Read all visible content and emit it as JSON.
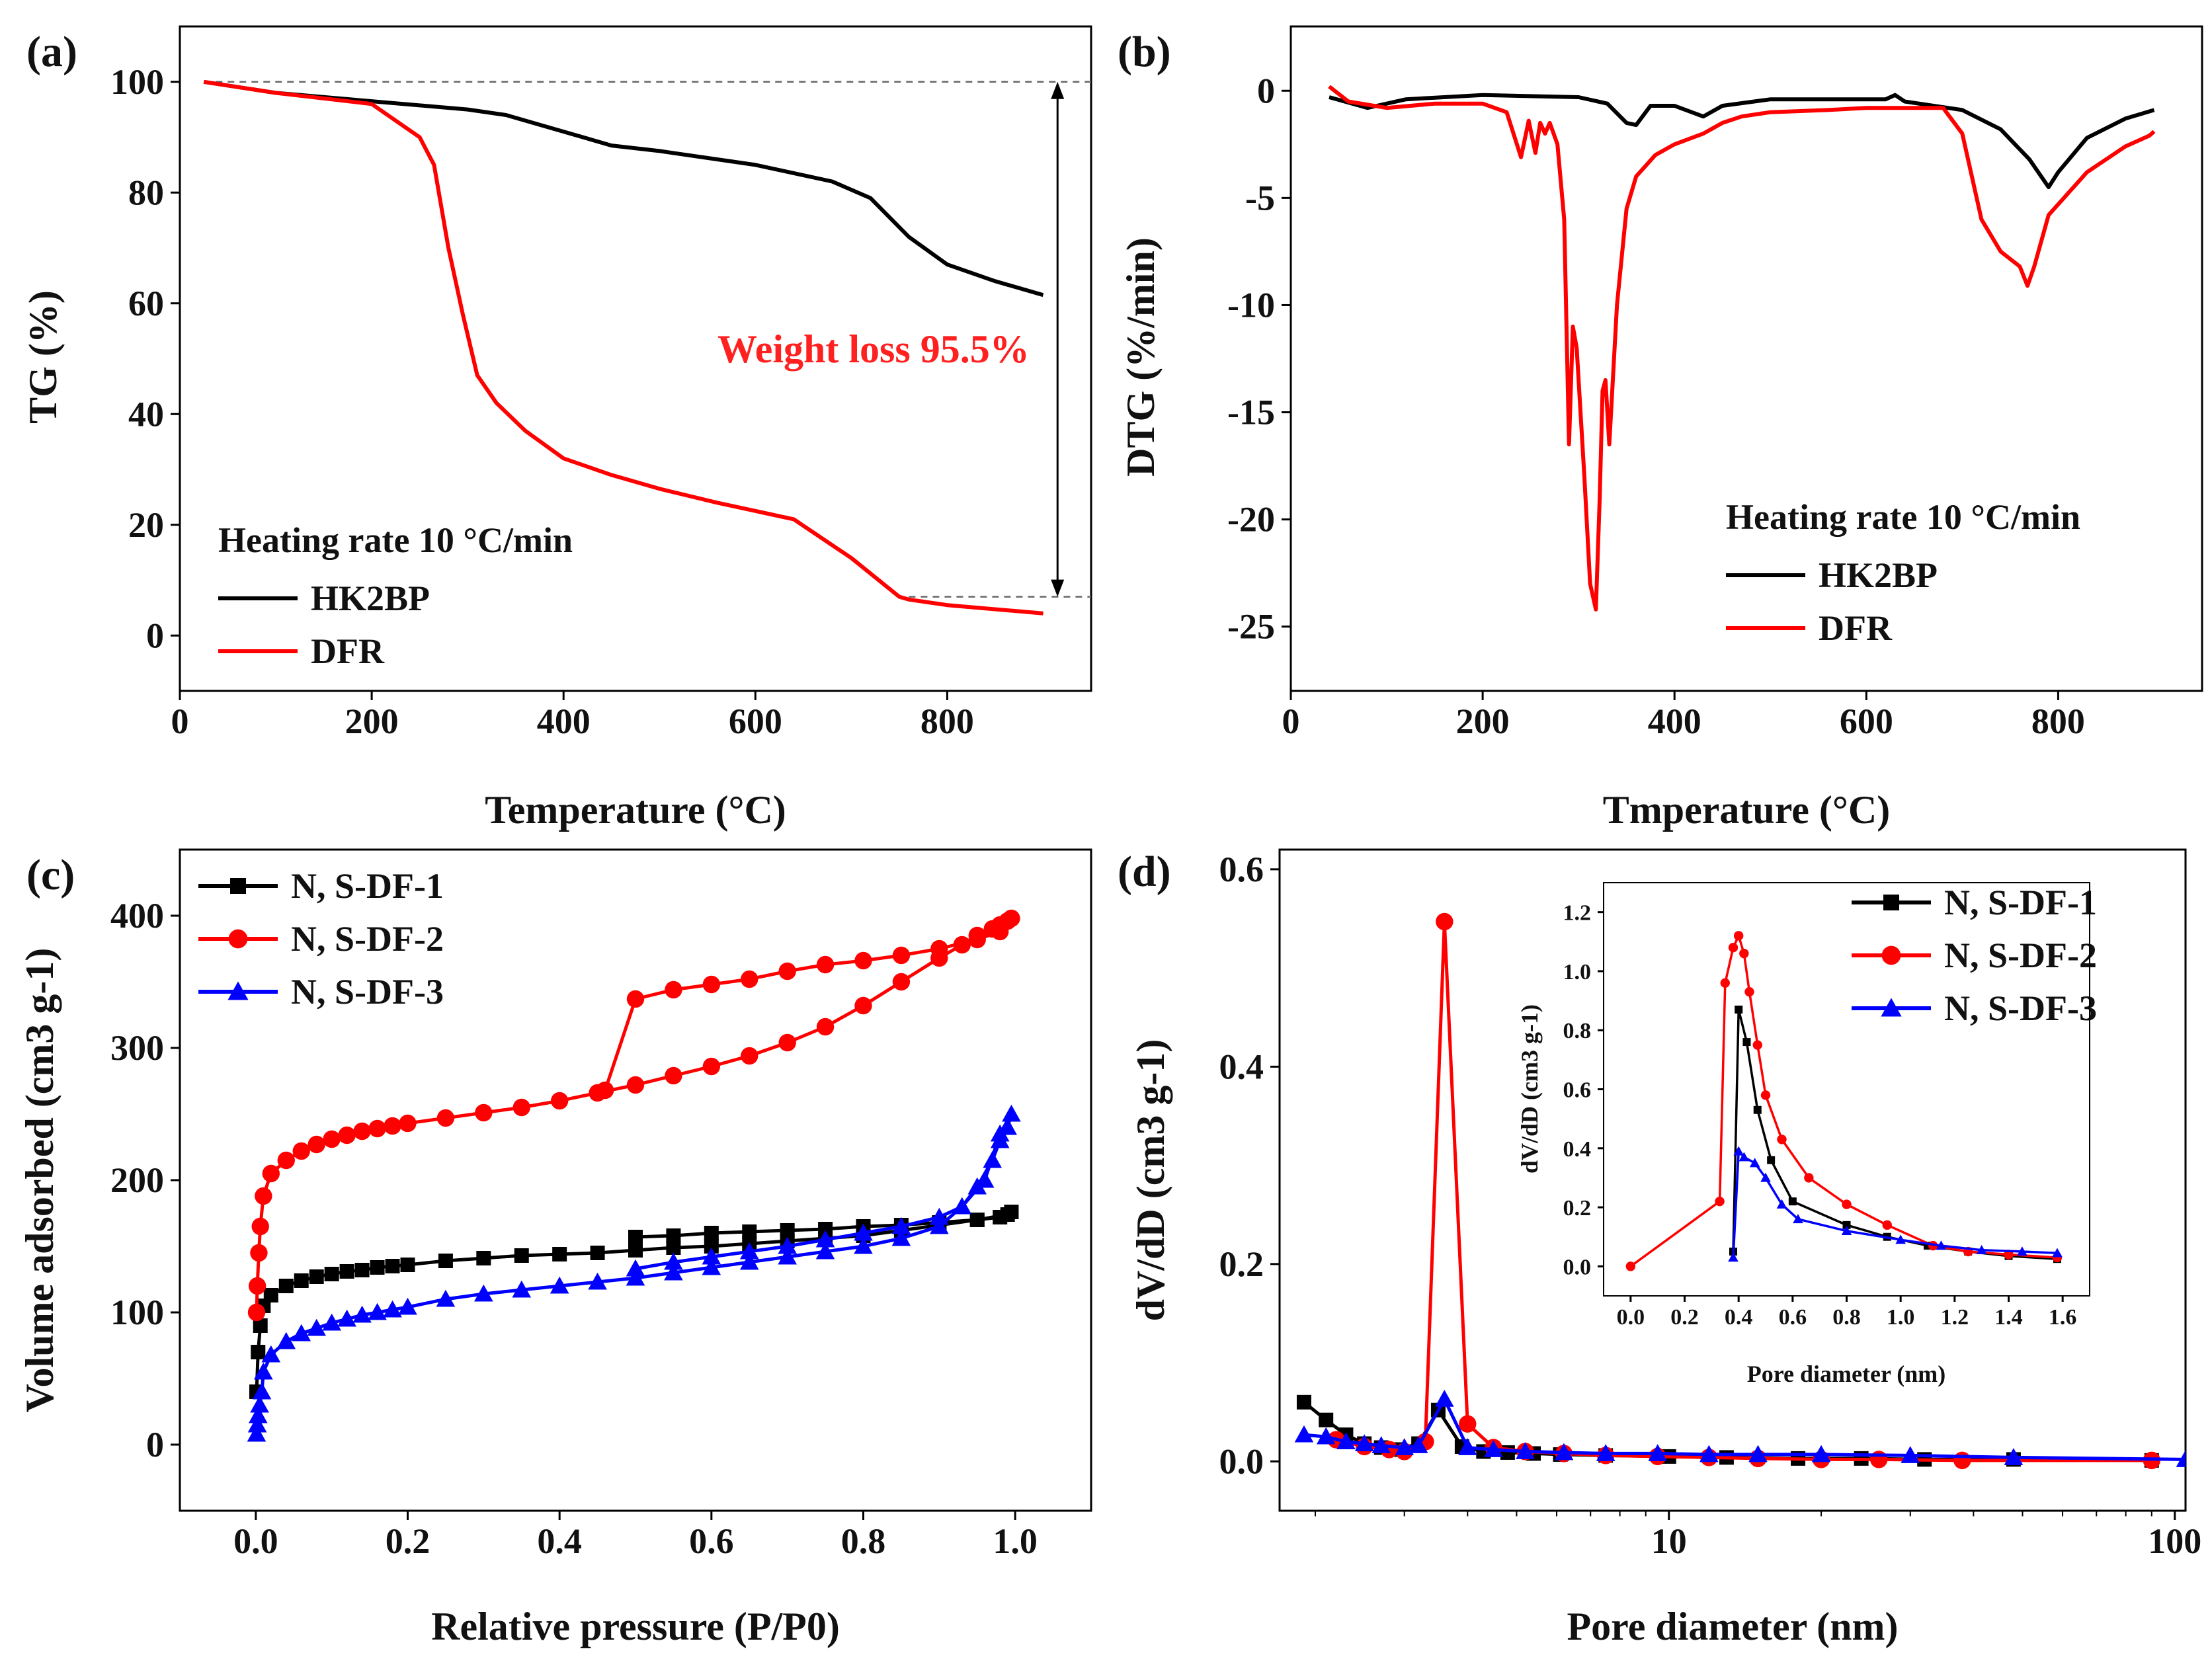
{
  "chart_data": [
    {
      "panel": "(a)",
      "type": "line",
      "xlabel": "Temperature (°C)",
      "ylabel": "TG (%)",
      "xlim": [
        0,
        950
      ],
      "ylim": [
        -10,
        110
      ],
      "xticks": [
        0,
        200,
        400,
        600,
        800
      ],
      "yticks": [
        0,
        20,
        40,
        60,
        80,
        100
      ],
      "annotations": [
        "Heating rate 10 °C/min",
        "Weight loss 95.5%"
      ],
      "loss_marker": {
        "from": 100,
        "to": 7
      },
      "series": [
        {
          "name": "HK2BP",
          "color": "#000000",
          "x": [
            25,
            100,
            200,
            300,
            340,
            360,
            400,
            450,
            500,
            600,
            680,
            720,
            760,
            800,
            850,
            900
          ],
          "y": [
            100,
            98,
            96.5,
            95,
            94,
            93,
            91,
            88.5,
            87.5,
            85,
            82,
            79,
            72,
            67,
            64,
            61.5
          ]
        },
        {
          "name": "DFR",
          "color": "#ff0000",
          "x": [
            25,
            100,
            200,
            250,
            265,
            280,
            295,
            310,
            330,
            360,
            400,
            450,
            500,
            560,
            640,
            700,
            750,
            760,
            800,
            900
          ],
          "y": [
            100,
            98,
            96,
            90,
            85,
            70,
            58,
            47,
            42,
            37,
            32,
            29,
            26.5,
            24,
            21,
            14,
            7,
            6.5,
            5.5,
            4
          ]
        }
      ]
    },
    {
      "panel": "(b)",
      "type": "line",
      "xlabel": "Tmperature (°C)",
      "ylabel": "DTG (%/min)",
      "xlim": [
        0,
        950
      ],
      "ylim": [
        -28,
        3
      ],
      "xticks": [
        0,
        200,
        400,
        600,
        800
      ],
      "yticks": [
        0,
        -5,
        -10,
        -15,
        -20,
        -25
      ],
      "annotations": [
        "Heating rate 10 °C/min"
      ],
      "series": [
        {
          "name": "HK2BP",
          "color": "#000000",
          "x": [
            40,
            80,
            120,
            200,
            300,
            330,
            350,
            360,
            375,
            400,
            430,
            450,
            500,
            600,
            620,
            630,
            640,
            700,
            740,
            770,
            790,
            800,
            830,
            870,
            900
          ],
          "y": [
            -0.3,
            -0.8,
            -0.4,
            -0.2,
            -0.3,
            -0.6,
            -1.5,
            -1.6,
            -0.7,
            -0.7,
            -1.2,
            -0.7,
            -0.4,
            -0.4,
            -0.4,
            -0.2,
            -0.5,
            -0.9,
            -1.8,
            -3.2,
            -4.5,
            -3.8,
            -2.2,
            -1.3,
            -0.9
          ]
        },
        {
          "name": "DFR",
          "color": "#ff0000",
          "x": [
            40,
            60,
            100,
            150,
            200,
            225,
            240,
            248,
            255,
            260,
            265,
            270,
            278,
            285,
            290,
            294,
            298,
            306,
            312,
            318,
            322,
            325,
            328,
            332,
            340,
            350,
            360,
            380,
            400,
            430,
            450,
            470,
            500,
            560,
            600,
            680,
            700,
            720,
            740,
            760,
            768,
            775,
            790,
            830,
            870,
            895,
            900
          ],
          "y": [
            0.2,
            -0.5,
            -0.8,
            -0.6,
            -0.6,
            -1.0,
            -3.1,
            -1.4,
            -2.9,
            -1.5,
            -2.0,
            -1.5,
            -2.5,
            -6.0,
            -16.5,
            -11.0,
            -12.0,
            -18.0,
            -23.0,
            -24.2,
            -19.0,
            -14.0,
            -13.5,
            -16.5,
            -10.0,
            -5.5,
            -4.0,
            -3.0,
            -2.5,
            -2.0,
            -1.5,
            -1.2,
            -1.0,
            -0.9,
            -0.8,
            -0.8,
            -2.0,
            -6.0,
            -7.5,
            -8.2,
            -9.1,
            -8.2,
            -5.8,
            -3.8,
            -2.6,
            -2.1,
            -1.9
          ]
        }
      ]
    },
    {
      "panel": "(c)",
      "type": "line",
      "xlabel": "Relative pressure (P/P0)",
      "ylabel": "Volume adsorbed (cm3 g-1)",
      "xlim": [
        -0.1,
        1.1
      ],
      "ylim": [
        -50,
        450
      ],
      "xticks": [
        0.0,
        0.2,
        0.4,
        0.6,
        0.8,
        1.0
      ],
      "yticks": [
        0,
        100,
        200,
        300,
        400
      ],
      "series": [
        {
          "name": "N, S-DF-1",
          "color": "#000000",
          "marker": "square",
          "x": [
            0.001,
            0.003,
            0.006,
            0.01,
            0.02,
            0.04,
            0.06,
            0.08,
            0.1,
            0.12,
            0.14,
            0.16,
            0.18,
            0.2,
            0.25,
            0.3,
            0.35,
            0.4,
            0.45,
            0.5,
            0.55,
            0.6,
            0.65,
            0.7,
            0.75,
            0.8,
            0.85,
            0.9,
            0.95,
            0.99,
            0.995,
            0.98,
            0.95,
            0.9,
            0.85,
            0.8,
            0.75,
            0.7,
            0.65,
            0.6,
            0.55,
            0.5
          ],
          "y": [
            40,
            70,
            90,
            105,
            113,
            120,
            124,
            127,
            129,
            131,
            132,
            134,
            135,
            136,
            139,
            141,
            143,
            144,
            145,
            147,
            149,
            150,
            152,
            154,
            156,
            158,
            162,
            166,
            170,
            174,
            176,
            172,
            170,
            168,
            166,
            165,
            163,
            162,
            161,
            160,
            158,
            157
          ]
        },
        {
          "name": "N, S-DF-2",
          "color": "#ff0000",
          "marker": "circle",
          "x": [
            0.001,
            0.002,
            0.004,
            0.006,
            0.01,
            0.02,
            0.04,
            0.06,
            0.08,
            0.1,
            0.12,
            0.14,
            0.16,
            0.18,
            0.2,
            0.25,
            0.3,
            0.35,
            0.4,
            0.45,
            0.5,
            0.55,
            0.6,
            0.65,
            0.7,
            0.75,
            0.8,
            0.85,
            0.9,
            0.93,
            0.95,
            0.97,
            0.98,
            0.99,
            0.995,
            0.98,
            0.95,
            0.9,
            0.85,
            0.8,
            0.75,
            0.7,
            0.65,
            0.6,
            0.55,
            0.5,
            0.46
          ],
          "y": [
            100,
            120,
            145,
            165,
            188,
            205,
            215,
            222,
            227,
            231,
            234,
            237,
            239,
            241,
            243,
            247,
            251,
            255,
            260,
            266,
            272,
            279,
            286,
            294,
            304,
            316,
            332,
            350,
            368,
            378,
            385,
            390,
            393,
            396,
            398,
            388,
            382,
            375,
            370,
            366,
            363,
            358,
            352,
            348,
            344,
            337,
            268
          ]
        },
        {
          "name": "N, S-DF-3",
          "color": "#0000ff",
          "marker": "triangle",
          "x": [
            0.001,
            0.002,
            0.003,
            0.005,
            0.008,
            0.01,
            0.02,
            0.04,
            0.06,
            0.08,
            0.1,
            0.12,
            0.14,
            0.16,
            0.18,
            0.2,
            0.25,
            0.3,
            0.35,
            0.4,
            0.45,
            0.5,
            0.55,
            0.6,
            0.65,
            0.7,
            0.75,
            0.8,
            0.85,
            0.9,
            0.93,
            0.95,
            0.97,
            0.98,
            0.99,
            0.995,
            0.98,
            0.96,
            0.93,
            0.9,
            0.85,
            0.8,
            0.75,
            0.7,
            0.65,
            0.6,
            0.55,
            0.5
          ],
          "y": [
            8,
            15,
            22,
            30,
            40,
            55,
            68,
            78,
            84,
            88,
            92,
            95,
            98,
            100,
            102,
            104,
            110,
            114,
            117,
            120,
            123,
            126,
            130,
            134,
            138,
            142,
            146,
            150,
            156,
            165,
            180,
            195,
            215,
            230,
            240,
            250,
            235,
            200,
            180,
            172,
            165,
            160,
            155,
            150,
            146,
            142,
            138,
            133
          ]
        }
      ]
    },
    {
      "panel": "(d)",
      "type": "line",
      "xlabel": "Pore diameter (nm)",
      "ylabel": "dV/dD (cm3 g-1)",
      "xscale": "log",
      "xlim": [
        1.7,
        105
      ],
      "ylim": [
        -0.05,
        0.62
      ],
      "xticks": [
        10,
        100
      ],
      "yticks": [
        0.0,
        0.2,
        0.4,
        0.6
      ],
      "series": [
        {
          "name": "N, S-DF-1",
          "color": "#000000",
          "marker": "square",
          "x": [
            1.9,
            2.1,
            2.3,
            2.5,
            2.7,
            2.9,
            3.2,
            3.5,
            3.9,
            4.3,
            4.8,
            5.4,
            6.1,
            7.5,
            10,
            13,
            18,
            24,
            32,
            48,
            90
          ],
          "y": [
            0.06,
            0.042,
            0.027,
            0.018,
            0.014,
            0.012,
            0.018,
            0.052,
            0.015,
            0.01,
            0.009,
            0.008,
            0.007,
            0.006,
            0.005,
            0.004,
            0.003,
            0.003,
            0.002,
            0.002,
            0.001
          ]
        },
        {
          "name": "N, S-DF-2",
          "color": "#ff0000",
          "marker": "circle",
          "x": [
            2.2,
            2.5,
            2.8,
            3.0,
            3.3,
            3.6,
            4.0,
            4.5,
            5.2,
            6.2,
            7.5,
            9.5,
            12,
            15,
            20,
            26,
            38,
            90
          ],
          "y": [
            0.022,
            0.015,
            0.012,
            0.01,
            0.02,
            0.547,
            0.038,
            0.014,
            0.01,
            0.008,
            0.006,
            0.005,
            0.004,
            0.003,
            0.002,
            0.002,
            0.001,
            0.001
          ]
        },
        {
          "name": "N, S-DF-3",
          "color": "#0000ff",
          "marker": "triangle",
          "x": [
            1.9,
            2.1,
            2.3,
            2.5,
            2.7,
            3.0,
            3.2,
            3.6,
            4.0,
            4.5,
            5.2,
            6.2,
            7.5,
            9.5,
            12,
            15,
            20,
            30,
            48,
            105
          ],
          "y": [
            0.027,
            0.025,
            0.02,
            0.018,
            0.016,
            0.014,
            0.016,
            0.063,
            0.014,
            0.012,
            0.01,
            0.009,
            0.008,
            0.008,
            0.007,
            0.007,
            0.007,
            0.006,
            0.004,
            0.002
          ]
        }
      ],
      "inset": {
        "xlabel": "Pore diameter (nm)",
        "ylabel": "dV/dD (cm3 g-1)",
        "xlim": [
          -0.1,
          1.7
        ],
        "ylim": [
          -0.1,
          1.3
        ],
        "xticks": [
          0.0,
          0.2,
          0.4,
          0.6,
          0.8,
          1.0,
          1.2,
          1.4,
          1.6
        ],
        "yticks": [
          0.0,
          0.2,
          0.4,
          0.6,
          0.8,
          1.0,
          1.2
        ],
        "series": [
          {
            "name": "N, S-DF-1",
            "color": "#000000",
            "marker": "square",
            "x": [
              0.38,
              0.4,
              0.43,
              0.47,
              0.52,
              0.6,
              0.8,
              0.95,
              1.1,
              1.25,
              1.4,
              1.58
            ],
            "y": [
              0.05,
              0.87,
              0.76,
              0.53,
              0.36,
              0.22,
              0.14,
              0.1,
              0.07,
              0.05,
              0.035,
              0.025
            ]
          },
          {
            "name": "N, S-DF-2",
            "color": "#ff0000",
            "marker": "circle",
            "x": [
              0.0,
              0.33,
              0.35,
              0.38,
              0.4,
              0.42,
              0.44,
              0.47,
              0.5,
              0.56,
              0.66,
              0.8,
              0.95,
              1.12,
              1.25,
              1.4,
              1.58
            ],
            "y": [
              0.0,
              0.22,
              0.96,
              1.08,
              1.12,
              1.06,
              0.93,
              0.75,
              0.58,
              0.43,
              0.3,
              0.21,
              0.14,
              0.07,
              0.05,
              0.04,
              0.03
            ]
          },
          {
            "name": "N, S-DF-3",
            "color": "#0000ff",
            "marker": "triangle",
            "x": [
              0.38,
              0.4,
              0.42,
              0.46,
              0.5,
              0.56,
              0.62,
              0.8,
              1.0,
              1.15,
              1.3,
              1.45,
              1.58
            ],
            "y": [
              0.03,
              0.39,
              0.37,
              0.35,
              0.3,
              0.21,
              0.16,
              0.12,
              0.09,
              0.07,
              0.055,
              0.05,
              0.045
            ]
          }
        ]
      }
    }
  ]
}
